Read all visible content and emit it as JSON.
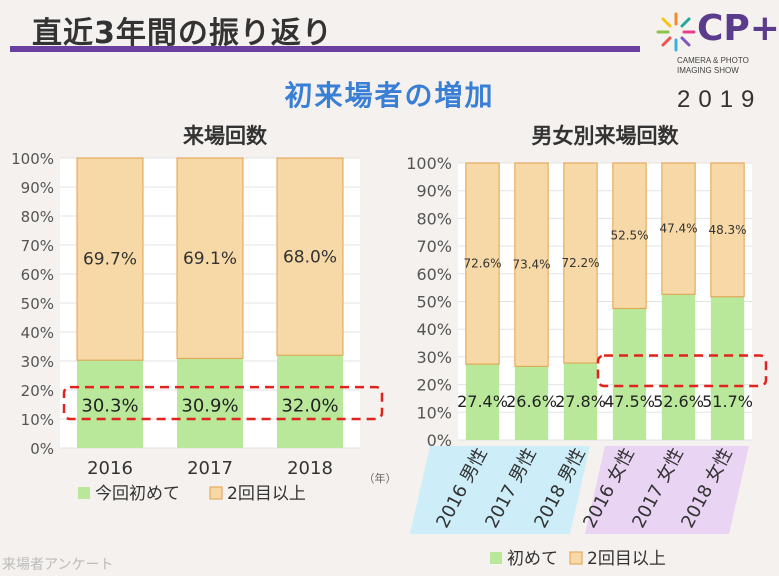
{
  "page": {
    "title": "直近3年間の振り返り",
    "subtitle": "初来場者の増加",
    "footer": "来場者アンケート"
  },
  "logo": {
    "name": "CP+",
    "subtitle": "CAMERA & PHOTO IMAGING SHOW",
    "year": "2019"
  },
  "colors": {
    "first": "#b9e89a",
    "repeat": "#f7d9a7",
    "border": "#e2a04a",
    "highlight": "#e0231c",
    "male_band": "#cdeef8",
    "female_band": "#ead4f3"
  },
  "chart_data": [
    {
      "type": "bar",
      "stacked": true,
      "title": "来場回数",
      "categories": [
        "2016",
        "2017",
        "2018"
      ],
      "unit_label": "（年）",
      "series": [
        {
          "name": "今回初めて",
          "values": [
            30.3,
            30.9,
            32.0
          ]
        },
        {
          "name": "2回目以上",
          "values": [
            69.7,
            69.1,
            68.0
          ]
        }
      ],
      "data_labels": {
        "今回初めて": [
          "30.3%",
          "30.9%",
          "32.0%"
        ],
        "2回目以上": [
          "69.7%",
          "69.1%",
          "68.0%"
        ]
      },
      "ylim": [
        0,
        100
      ],
      "yticks": [
        "0%",
        "10%",
        "20%",
        "30%",
        "40%",
        "50%",
        "60%",
        "70%",
        "80%",
        "90%",
        "100%"
      ],
      "legend_position": "bottom",
      "grid": true
    },
    {
      "type": "bar",
      "stacked": true,
      "title": "男女別来場回数",
      "categories": [
        "2016 男性",
        "2017 男性",
        "2018 男性",
        "2016 女性",
        "2017 女性",
        "2018 女性"
      ],
      "series": [
        {
          "name": "初めて",
          "values": [
            27.4,
            26.6,
            27.8,
            47.5,
            52.6,
            51.7
          ]
        },
        {
          "name": "2回目以上",
          "values": [
            72.6,
            73.4,
            72.2,
            52.5,
            47.4,
            48.3
          ]
        }
      ],
      "data_labels": {
        "初めて": [
          "27.4%",
          "26.6%",
          "27.8%",
          "47.5%",
          "52.6%",
          "51.7%"
        ],
        "2回目以上": [
          "72.6%",
          "73.4%",
          "72.2%",
          "52.5%",
          "47.4%",
          "48.3%"
        ]
      },
      "ylim": [
        0,
        100
      ],
      "yticks": [
        "0%",
        "10%",
        "20%",
        "30%",
        "40%",
        "50%",
        "60%",
        "70%",
        "80%",
        "90%",
        "100%"
      ],
      "legend_position": "bottom",
      "grid": true
    }
  ]
}
